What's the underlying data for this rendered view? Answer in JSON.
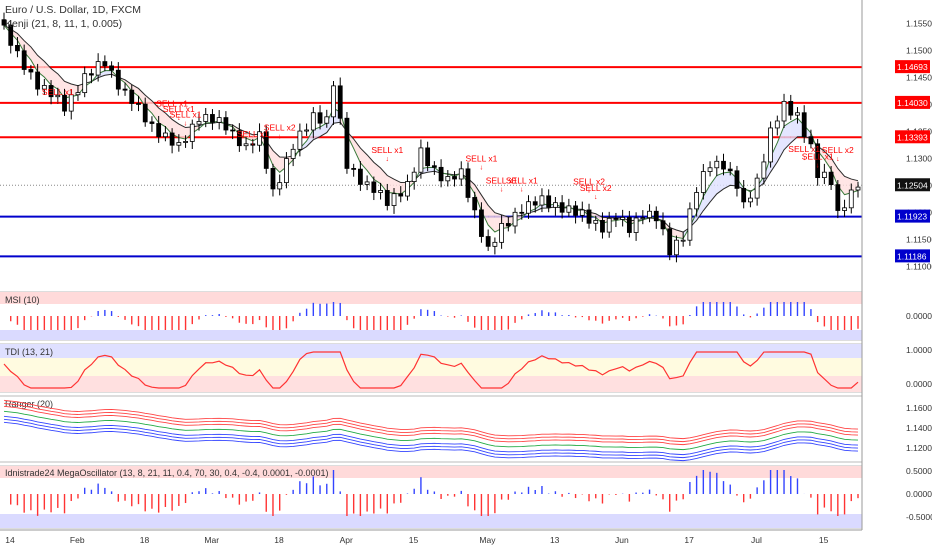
{
  "header": {
    "symbol_line": "Euro / U.S. Dollar, 1D, FXCM",
    "indicator_line": "Kenji (21, 8, 11, 1, 0.005)"
  },
  "colors": {
    "up_candle": "#ffffff",
    "down_candle": "#000000",
    "red_level": "#ff0000",
    "blue_level": "#0000cc",
    "signal_text": "#ff0000",
    "tdi_line": "#3355ff",
    "tdi_line_red": "#ff3333",
    "ranger_red": "#ff4444",
    "ranger_blue": "#3344ff",
    "ranger_green": "#22aa44",
    "histo_blue": "#3344ff",
    "histo_red": "#ff3333"
  },
  "chart_data": [
    {
      "type": "candlestick",
      "title": "Euro / U.S. Dollar, 1D, FXCM",
      "ylim": [
        1.106,
        1.159
      ],
      "y_ticks": [
        "1.15500",
        "1.15000",
        "1.14500",
        "1.14000",
        "1.13500",
        "1.13000",
        "1.12500",
        "1.12000",
        "1.11500",
        "1.11000"
      ],
      "x_ticks": [
        "14",
        "Feb",
        "18",
        "Mar",
        "18",
        "Apr",
        "15",
        "May",
        "13",
        "Jun",
        "17",
        "Jul",
        "15"
      ],
      "current_price": "1.12504",
      "levels": [
        {
          "value": "1.14693",
          "color": "red"
        },
        {
          "value": "1.14030",
          "color": "red"
        },
        {
          "value": "1.13393",
          "color": "red"
        },
        {
          "value": "1.11923",
          "color": "blue"
        },
        {
          "value": "1.11186",
          "color": "blue"
        }
      ],
      "signals": [
        {
          "label": "SELL x1",
          "bar": 8,
          "price": 1.1418
        },
        {
          "label": "SELL x1",
          "bar": 25,
          "price": 1.1396
        },
        {
          "label": "SELL x1",
          "bar": 26,
          "price": 1.1386
        },
        {
          "label": "SELL x1",
          "bar": 27,
          "price": 1.1376
        },
        {
          "label": "SELL x1",
          "bar": 37,
          "price": 1.134
        },
        {
          "label": "SELL x2",
          "bar": 41,
          "price": 1.1352
        },
        {
          "label": "SELL x1",
          "bar": 57,
          "price": 1.131
        },
        {
          "label": "SELL x1",
          "bar": 71,
          "price": 1.1294
        },
        {
          "label": "SELL x1",
          "bar": 74,
          "price": 1.1254
        },
        {
          "label": "SELL x1",
          "bar": 77,
          "price": 1.1254
        },
        {
          "label": "SELL x2",
          "bar": 87,
          "price": 1.1252
        },
        {
          "label": "SELL x2",
          "bar": 88,
          "price": 1.124
        },
        {
          "label": "SELL x1",
          "bar": 119,
          "price": 1.1312
        },
        {
          "label": "SELL x1",
          "bar": 121,
          "price": 1.1298
        },
        {
          "label": "SELL x2",
          "bar": 124,
          "price": 1.131
        }
      ]
    },
    {
      "type": "histogram",
      "title": "MSI (10)",
      "y_ticks": [
        "0.00000"
      ]
    },
    {
      "type": "line",
      "title": "TDI (13, 21)",
      "y_ticks": [
        "1.00000",
        "0.00000"
      ]
    },
    {
      "type": "line",
      "title": "Ranger (20)",
      "y_ticks": [
        "1.16000",
        "1.14000",
        "1.12000"
      ]
    },
    {
      "type": "histogram",
      "title": "Idnistrade24 MegaOscillator (13, 8, 21, 11, 0.4, 70, 30, 0.4, -0.4, 0.0001, -0.0001)",
      "y_ticks": [
        "0.50000",
        "0.00000",
        "-0.50000"
      ]
    }
  ]
}
